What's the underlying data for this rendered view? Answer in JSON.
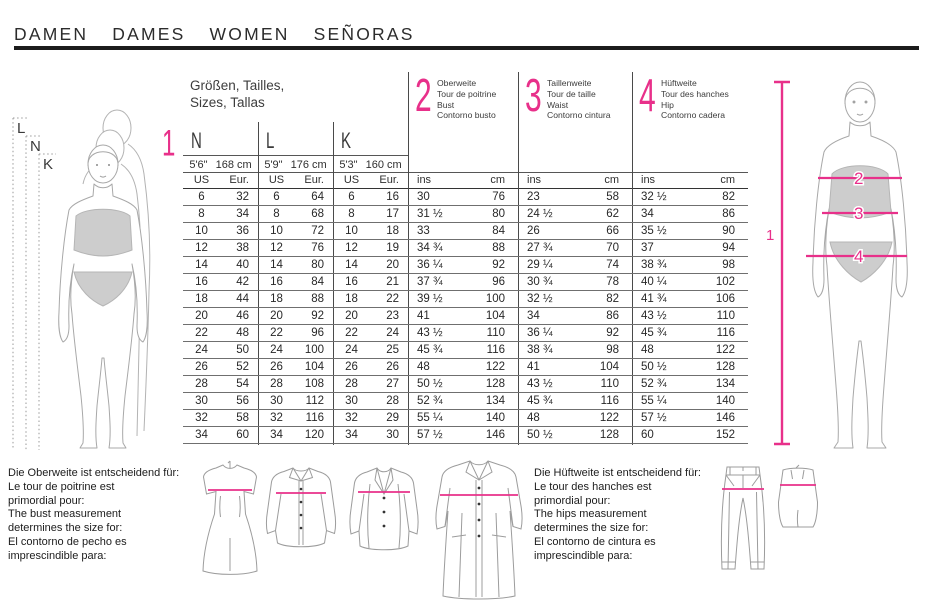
{
  "title": "DAMEN DAMES WOMEN SEÑORAS",
  "colors": {
    "pink": "#e8308a",
    "text": "#2a2a2a",
    "rule": "#1c1c1c",
    "figure_outline": "#aaaaaa",
    "figure_fill": "#cdcdcd"
  },
  "size_chart": {
    "heading_line1": "Größen, Tailles,",
    "heading_line2": "Sizes, Tallas",
    "height_marker": "1",
    "size_groups": [
      {
        "label": "N",
        "height_ft": "5'6\"",
        "height_cm": "168 cm",
        "unit1": "US",
        "unit2": "Eur."
      },
      {
        "label": "L",
        "height_ft": "5'9\"",
        "height_cm": "176 cm",
        "unit1": "US",
        "unit2": "Eur."
      },
      {
        "label": "K",
        "height_ft": "5'3\"",
        "height_cm": "160 cm",
        "unit1": "US",
        "unit2": "Eur."
      }
    ],
    "measure_groups": [
      {
        "num": "2",
        "line1": "Oberweite",
        "line2": "Tour de poitrine",
        "line3": "Bust",
        "line4": "Contorno busto",
        "unit1": "ins",
        "unit2": "cm"
      },
      {
        "num": "3",
        "line1": "Taillenweite",
        "line2": "Tour de taille",
        "line3": "Waist",
        "line4": "Contorno cintura",
        "unit1": "ins",
        "unit2": "cm"
      },
      {
        "num": "4",
        "line1": "Hüftweite",
        "line2": "Tour des hanches",
        "line3": "Hip",
        "line4": "Contorno cadera",
        "unit1": "ins",
        "unit2": "cm"
      }
    ],
    "rows": [
      [
        "6",
        "32",
        "6",
        "64",
        "6",
        "16",
        "30",
        "76",
        "23",
        "58",
        "32 ½",
        "82"
      ],
      [
        "8",
        "34",
        "8",
        "68",
        "8",
        "17",
        "31 ½",
        "80",
        "24 ½",
        "62",
        "34",
        "86"
      ],
      [
        "10",
        "36",
        "10",
        "72",
        "10",
        "18",
        "33",
        "84",
        "26",
        "66",
        "35 ½",
        "90"
      ],
      [
        "12",
        "38",
        "12",
        "76",
        "12",
        "19",
        "34 ¾",
        "88",
        "27 ¾",
        "70",
        "37",
        "94"
      ],
      [
        "14",
        "40",
        "14",
        "80",
        "14",
        "20",
        "36 ¼",
        "92",
        "29 ¼",
        "74",
        "38 ¾",
        "98"
      ],
      [
        "16",
        "42",
        "16",
        "84",
        "16",
        "21",
        "37 ¾",
        "96",
        "30 ¾",
        "78",
        "40 ¼",
        "102"
      ],
      [
        "18",
        "44",
        "18",
        "88",
        "18",
        "22",
        "39 ½",
        "100",
        "32 ½",
        "82",
        "41 ¾",
        "106"
      ],
      [
        "20",
        "46",
        "20",
        "92",
        "20",
        "23",
        "41",
        "104",
        "34",
        "86",
        "43 ½",
        "110"
      ],
      [
        "22",
        "48",
        "22",
        "96",
        "22",
        "24",
        "43 ½",
        "110",
        "36 ¼",
        "92",
        "45 ¾",
        "116"
      ],
      [
        "24",
        "50",
        "24",
        "100",
        "24",
        "25",
        "45 ¾",
        "116",
        "38 ¾",
        "98",
        "48",
        "122"
      ],
      [
        "26",
        "52",
        "26",
        "104",
        "26",
        "26",
        "48",
        "122",
        "41",
        "104",
        "50 ½",
        "128"
      ],
      [
        "28",
        "54",
        "28",
        "108",
        "28",
        "27",
        "50 ½",
        "128",
        "43 ½",
        "110",
        "52 ¾",
        "134"
      ],
      [
        "30",
        "56",
        "30",
        "112",
        "30",
        "28",
        "52 ¾",
        "134",
        "45 ¾",
        "116",
        "55 ¼",
        "140"
      ],
      [
        "32",
        "58",
        "32",
        "116",
        "32",
        "29",
        "55 ¼",
        "140",
        "48",
        "122",
        "57 ½",
        "146"
      ],
      [
        "34",
        "60",
        "34",
        "120",
        "34",
        "30",
        "57 ½",
        "146",
        "50 ½",
        "128",
        "60",
        "152"
      ]
    ]
  },
  "figures": {
    "left": {
      "label_l": "L",
      "label_n": "N",
      "label_k": "K"
    },
    "right": {
      "height_label": "1",
      "bust_label": "2",
      "waist_label": "3",
      "hip_label": "4"
    }
  },
  "notes": {
    "bust": [
      "Die Oberweite ist entscheidend für:",
      "Le tour de poitrine est",
      "primordial pour:",
      "The bust measurement",
      "determines the size for:",
      "El contorno de pecho es",
      "imprescindible para:"
    ],
    "hip": [
      "Die Hüftweite ist entscheidend für:",
      "Le tour des hanches est",
      "primordial pour:",
      "The hips measurement",
      "determines the size for:",
      "El contorno de cintura es",
      "imprescindible para:"
    ]
  }
}
